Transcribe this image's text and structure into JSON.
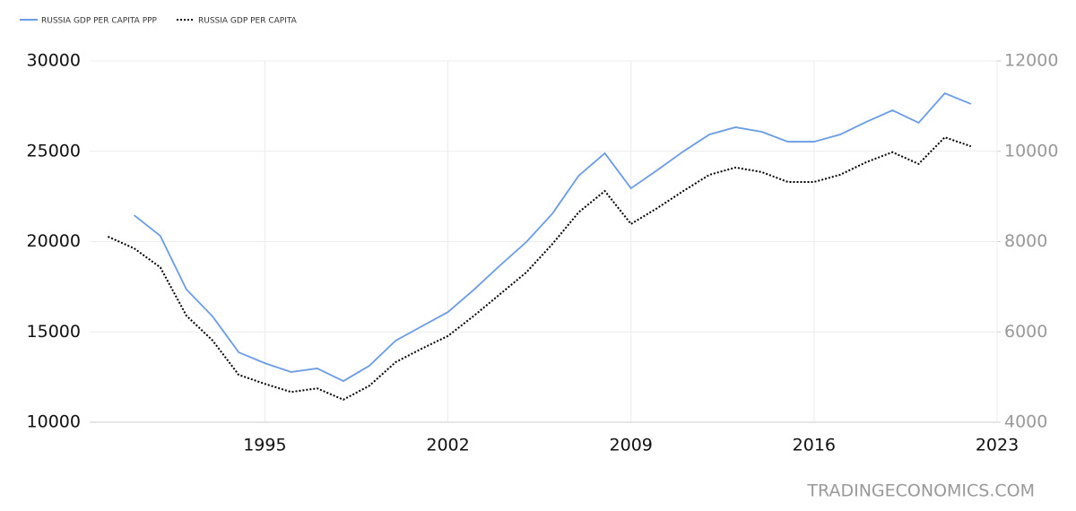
{
  "chart_data": {
    "type": "line",
    "x": [
      1989,
      1990,
      1991,
      1992,
      1993,
      1994,
      1995,
      1996,
      1997,
      1998,
      1999,
      2000,
      2001,
      2002,
      2003,
      2004,
      2005,
      2006,
      2007,
      2008,
      2009,
      2010,
      2011,
      2012,
      2013,
      2014,
      2015,
      2016,
      2017,
      2018,
      2019,
      2020,
      2021,
      2022
    ],
    "series": [
      {
        "name": "RUSSIA GDP PER CAPITA PPP",
        "color": "#6a9be6",
        "line_style": "solid",
        "axis": "y",
        "values": [
          null,
          21460,
          20320,
          17350,
          15860,
          13870,
          13270,
          12780,
          12980,
          12280,
          13130,
          14520,
          15310,
          16100,
          17350,
          18690,
          19980,
          21560,
          23650,
          24890,
          22950,
          23950,
          24990,
          25930,
          26330,
          26080,
          25530,
          25530,
          25930,
          26630,
          27270,
          26580,
          28210,
          27620
        ]
      },
      {
        "name": "RUSSIA GDP PER CAPITA",
        "color": "#000000",
        "line_style": "dotted",
        "axis": "y2",
        "values": [
          8110,
          7850,
          7430,
          6360,
          5810,
          5050,
          4850,
          4670,
          4750,
          4500,
          4810,
          5330,
          5630,
          5910,
          6360,
          6840,
          7320,
          7950,
          8650,
          9120,
          8390,
          8740,
          9120,
          9480,
          9640,
          9540,
          9320,
          9320,
          9480,
          9760,
          9980,
          9720,
          10310,
          10110
        ]
      }
    ],
    "xlim": [
      1988.3,
      2023
    ],
    "xticks": [
      1995,
      2002,
      2009,
      2016,
      2023
    ],
    "ylim": [
      10000,
      30000
    ],
    "yticks": [
      10000,
      15000,
      20000,
      25000,
      30000
    ],
    "y2lim": [
      4000,
      12000
    ],
    "y2ticks": [
      4000,
      6000,
      8000,
      10000,
      12000
    ],
    "grid": true,
    "legend": "top-left",
    "watermark": "TRADINGECONOMICS.COM"
  }
}
